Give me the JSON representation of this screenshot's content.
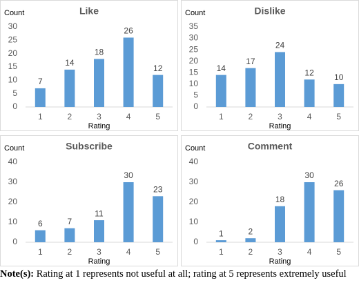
{
  "chart_data": [
    {
      "type": "bar",
      "title": "Like",
      "y_label": "Count",
      "x_label": "Rating",
      "categories": [
        "1",
        "2",
        "3",
        "4",
        "5"
      ],
      "values": [
        7,
        14,
        18,
        26,
        12
      ],
      "color": "#5b9bd5",
      "ylim": [
        0,
        30
      ],
      "yticks": [
        0,
        5,
        10,
        15,
        20,
        25,
        30
      ],
      "grid": false
    },
    {
      "type": "bar",
      "title": "Dislike",
      "y_label": "Count",
      "x_label": "Rating",
      "categories": [
        "1",
        "2",
        "3",
        "4",
        "5"
      ],
      "values": [
        14,
        17,
        24,
        12,
        10
      ],
      "color": "#5b9bd5",
      "ylim": [
        0,
        35
      ],
      "yticks": [
        0,
        5,
        10,
        15,
        20,
        25,
        30,
        35
      ],
      "grid": false
    },
    {
      "type": "bar",
      "title": "Subscribe",
      "y_label": "Count",
      "x_label": "Rating",
      "categories": [
        "1",
        "2",
        "3",
        "4",
        "5"
      ],
      "values": [
        6,
        7,
        11,
        30,
        23
      ],
      "color": "#5b9bd5",
      "ylim": [
        0,
        40
      ],
      "yticks": [
        0,
        10,
        20,
        30,
        40
      ],
      "grid": false
    },
    {
      "type": "bar",
      "title": "Comment",
      "y_label": "Count",
      "x_label": "Rating",
      "categories": [
        "1",
        "2",
        "3",
        "4",
        "5"
      ],
      "values": [
        1,
        2,
        18,
        30,
        26
      ],
      "color": "#5b9bd5",
      "ylim": [
        0,
        40
      ],
      "yticks": [
        0,
        10,
        20,
        30,
        40
      ],
      "grid": false
    }
  ],
  "note": {
    "label": "Note(s):",
    "text": "Rating at 1 represents not useful at all; rating at 5 represents extremely useful"
  }
}
